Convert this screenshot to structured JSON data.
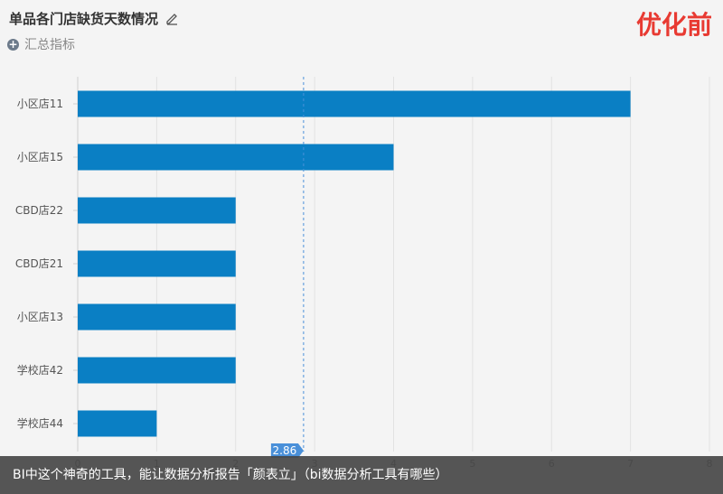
{
  "header": {
    "title": "单品各门店缺货天数情况",
    "edit_icon": "pencil-icon",
    "summary_label": "汇总指标",
    "summary_icon": "plus-circle-icon",
    "badge": "优化前",
    "badge_color": "#e83a32"
  },
  "chart_data": {
    "type": "bar",
    "orientation": "horizontal",
    "categories": [
      "小区店11",
      "小区店15",
      "CBD店22",
      "CBD店21",
      "小区店13",
      "学校店42",
      "学校店44"
    ],
    "values": [
      7,
      4,
      2,
      2,
      2,
      2,
      1
    ],
    "xlim": [
      0,
      8
    ],
    "x_ticks": [
      "0",
      "1",
      "2",
      "3",
      "4",
      "5",
      "6",
      "7",
      "8"
    ],
    "grid": true,
    "bar_color": "#0a7fc4",
    "reference_line": {
      "value": 2.86,
      "label": "2.86",
      "color": "#4a90d9"
    }
  },
  "footer": {
    "text": "BI中这个神奇的工具，能让数据分析报告「颜表立」（bi数据分析工具有哪些）"
  }
}
